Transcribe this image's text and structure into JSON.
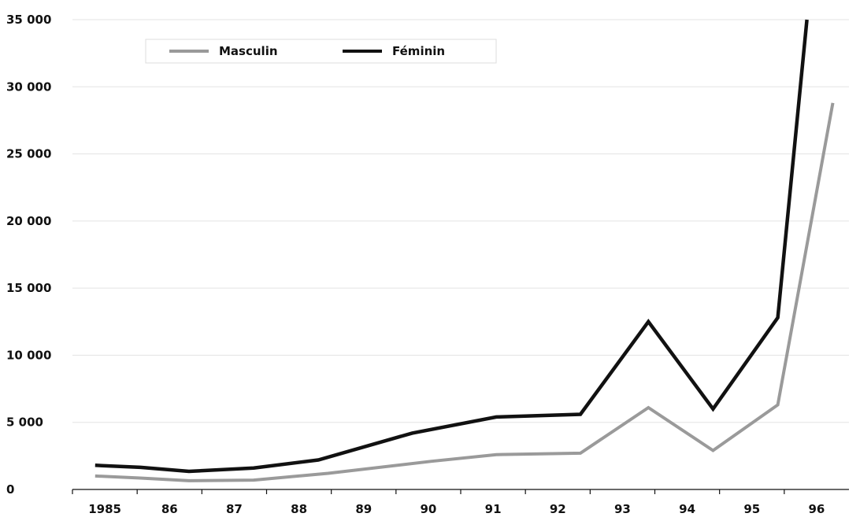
{
  "chart_data": {
    "type": "line",
    "categories": [
      "1985",
      "86",
      "87",
      "88",
      "89",
      "90",
      "91",
      "92",
      "93",
      "94",
      "95",
      "96"
    ],
    "series": [
      {
        "name": "Masculin",
        "color": "#9a9a9a",
        "points": [
          {
            "x": 1985.0,
            "y": 1000
          },
          {
            "x": 1985.7,
            "y": 850
          },
          {
            "x": 1986.45,
            "y": 650
          },
          {
            "x": 1987.45,
            "y": 700
          },
          {
            "x": 1988.6,
            "y": 1200
          },
          {
            "x": 1990.2,
            "y": 2100
          },
          {
            "x": 1991.2,
            "y": 2600
          },
          {
            "x": 1992.5,
            "y": 2700
          },
          {
            "x": 1993.55,
            "y": 6100
          },
          {
            "x": 1994.55,
            "y": 2900
          },
          {
            "x": 1995.55,
            "y": 6300
          },
          {
            "x": 1996.4,
            "y": 28800
          }
        ]
      },
      {
        "name": "Féminin",
        "color": "#111111",
        "points": [
          {
            "x": 1985.0,
            "y": 1800
          },
          {
            "x": 1985.7,
            "y": 1650
          },
          {
            "x": 1986.45,
            "y": 1350
          },
          {
            "x": 1987.45,
            "y": 1600
          },
          {
            "x": 1988.45,
            "y": 2200
          },
          {
            "x": 1989.9,
            "y": 4200
          },
          {
            "x": 1991.2,
            "y": 5400
          },
          {
            "x": 1992.5,
            "y": 5600
          },
          {
            "x": 1993.55,
            "y": 12500
          },
          {
            "x": 1994.55,
            "y": 6000
          },
          {
            "x": 1995.55,
            "y": 12800
          },
          {
            "x": 1996.0,
            "y": 35000
          }
        ]
      }
    ],
    "yticks": [
      "0",
      "5 000",
      "10 000",
      "15 000",
      "20 000",
      "25 000",
      "30 000",
      "35 000"
    ],
    "ylim": [
      0,
      35000
    ],
    "xlim": [
      1984.65,
      1996.65
    ],
    "grid": true,
    "legend_position": "top-left",
    "title": "",
    "xlabel": "",
    "ylabel": ""
  }
}
